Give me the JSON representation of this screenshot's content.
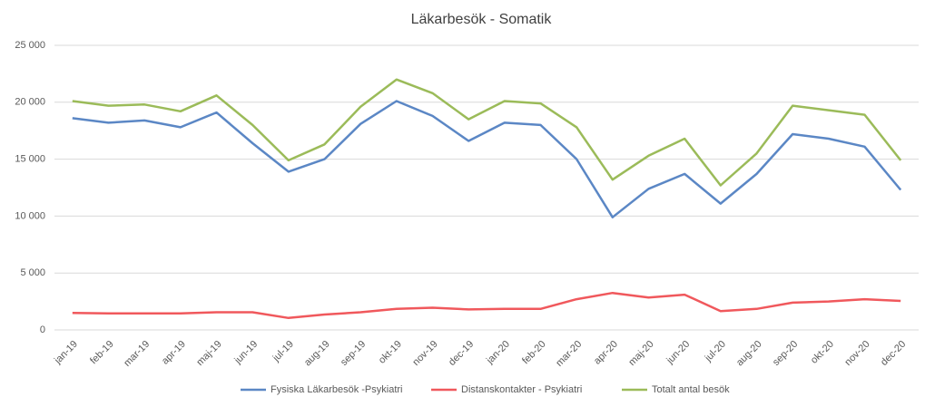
{
  "chart_data": {
    "type": "line",
    "title": "Läkarbesök - Somatik",
    "categories": [
      "jan-19",
      "feb-19",
      "mar-19",
      "apr-19",
      "maj-19",
      "jun-19",
      "jul-19",
      "aug-19",
      "sep-19",
      "okt-19",
      "nov-19",
      "dec-19",
      "jan-20",
      "feb-20",
      "mar-20",
      "apr-20",
      "maj-20",
      "jun-20",
      "jul-20",
      "aug-20",
      "sep-20",
      "okt-20",
      "nov-20",
      "dec-20"
    ],
    "series": [
      {
        "name": "Fysiska Läkarbesök -Psykiatri",
        "color": "#5b87c5",
        "values": [
          18600,
          18200,
          18400,
          17800,
          19100,
          16400,
          13900,
          15000,
          18100,
          20100,
          18800,
          16600,
          18200,
          18000,
          15000,
          9900,
          12400,
          13700,
          11100,
          13700,
          17200,
          16800,
          16100,
          12300
        ]
      },
      {
        "name": "Distanskontakter - Psykiatri",
        "color": "#f0585c",
        "values": [
          1500,
          1450,
          1450,
          1450,
          1550,
          1550,
          1050,
          1350,
          1550,
          1850,
          1950,
          1800,
          1850,
          1850,
          2700,
          3250,
          2850,
          3100,
          1650,
          1850,
          2400,
          2500,
          2700,
          2550
        ]
      },
      {
        "name": "Totalt antal besök",
        "color": "#9bbb59",
        "values": [
          20100,
          19700,
          19800,
          19200,
          20600,
          18000,
          14900,
          16300,
          19600,
          22000,
          20800,
          18500,
          20100,
          19900,
          17800,
          13200,
          15300,
          16800,
          12700,
          15500,
          19700,
          19300,
          18900,
          14900
        ]
      }
    ],
    "ylim": [
      0,
      25000
    ],
    "yticks": [
      0,
      {
        "value": 5000,
        "label": "5 000"
      },
      {
        "value": 10000,
        "label": "10 000"
      },
      {
        "value": 15000,
        "label": "15 000"
      },
      {
        "value": 20000,
        "label": "20 000"
      },
      {
        "value": 25000,
        "label": "25 000"
      }
    ],
    "grid": true,
    "legend": "bottom"
  }
}
